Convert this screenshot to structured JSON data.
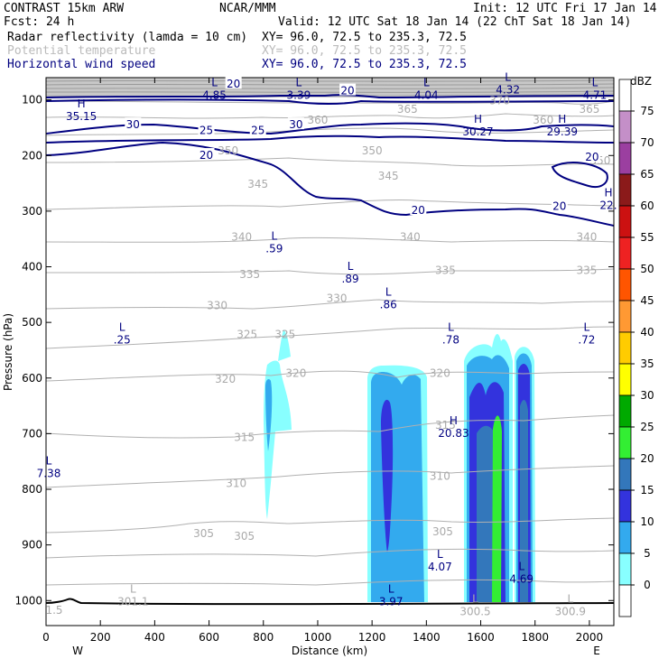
{
  "header": {
    "line1_left": "CONTRAST 15km ARW",
    "line1_mid": "NCAR/MMM",
    "line1_right": "Init: 12 UTC Fri 17 Jan 14",
    "line2_left": "Fcst:    24 h",
    "line2_right": "Valid: 12 UTC Sat 18 Jan 14 (22 ChT Sat 18 Jan 14)"
  },
  "fields": [
    {
      "name": "Radar reflectivity (lamda = 10 cm)",
      "xy": "XY=  96.0, 72.5 to 235.3, 72.5",
      "color": "#000000"
    },
    {
      "name": "Potential temperature",
      "xy": "XY=  96.0, 72.5 to 235.3, 72.5",
      "color": "#bbbbbb"
    },
    {
      "name": "Horizontal wind speed",
      "xy": "XY=  96.0, 72.5 to 235.3, 72.5",
      "color": "#000080"
    }
  ],
  "chart_data": {
    "type": "cross-section",
    "xlabel": "Distance (km)",
    "ylabel": "Pressure (hPa)",
    "xlim": [
      0,
      2090
    ],
    "ylim": [
      1045,
      60
    ],
    "x_ticks": [
      0,
      200,
      400,
      600,
      800,
      1000,
      1200,
      1400,
      1600,
      1800,
      2000
    ],
    "y_ticks": [
      100,
      200,
      300,
      400,
      500,
      600,
      700,
      800,
      900,
      1000
    ],
    "x_end_labels": {
      "left": "W",
      "right": "E"
    },
    "colorbar": {
      "unit": "dBZ",
      "levels": [
        75,
        70,
        65,
        60,
        55,
        50,
        45,
        40,
        35,
        30,
        25,
        20,
        15,
        10,
        5,
        0
      ],
      "colors": [
        "#ffffff",
        "#c48fc8",
        "#9b3fa0",
        "#8b1a1a",
        "#cc1111",
        "#ee2222",
        "#ff5500",
        "#ff9933",
        "#ffcc00",
        "#ffff00",
        "#00aa00",
        "#33ee33",
        "#3377bb",
        "#3333dd",
        "#33aaee",
        "#88ffff"
      ]
    },
    "theta_labels": [
      {
        "text": "360",
        "x": 1000,
        "p": 135
      },
      {
        "text": "360",
        "x": 1830,
        "p": 135
      },
      {
        "text": "365",
        "x": 1330,
        "p": 115
      },
      {
        "text": "365",
        "x": 2000,
        "p": 115
      },
      {
        "text": "370",
        "x": 1670,
        "p": 100
      },
      {
        "text": "350",
        "x": 670,
        "p": 190
      },
      {
        "text": "350",
        "x": 1200,
        "p": 190
      },
      {
        "text": "350",
        "x": 2040,
        "p": 208
      },
      {
        "text": "345",
        "x": 780,
        "p": 250
      },
      {
        "text": "345",
        "x": 1260,
        "p": 235
      },
      {
        "text": "340",
        "x": 720,
        "p": 345
      },
      {
        "text": "340",
        "x": 1340,
        "p": 345
      },
      {
        "text": "340",
        "x": 1990,
        "p": 345
      },
      {
        "text": "335",
        "x": 750,
        "p": 412
      },
      {
        "text": "335",
        "x": 1470,
        "p": 405
      },
      {
        "text": "335",
        "x": 1990,
        "p": 405
      },
      {
        "text": "330",
        "x": 630,
        "p": 468
      },
      {
        "text": "330",
        "x": 1070,
        "p": 455
      },
      {
        "text": "325",
        "x": 740,
        "p": 520
      },
      {
        "text": "325",
        "x": 880,
        "p": 520
      },
      {
        "text": "320",
        "x": 660,
        "p": 600
      },
      {
        "text": "320",
        "x": 920,
        "p": 590
      },
      {
        "text": "320",
        "x": 1450,
        "p": 590
      },
      {
        "text": "315",
        "x": 730,
        "p": 705
      },
      {
        "text": "315",
        "x": 1470,
        "p": 683
      },
      {
        "text": "310",
        "x": 700,
        "p": 788
      },
      {
        "text": "310",
        "x": 1450,
        "p": 775
      },
      {
        "text": "305",
        "x": 580,
        "p": 878
      },
      {
        "text": "305",
        "x": 730,
        "p": 883
      },
      {
        "text": "305",
        "x": 1460,
        "p": 875
      }
    ],
    "wind_labels": [
      {
        "text": "30",
        "x": 320,
        "p": 143
      },
      {
        "text": "30",
        "x": 920,
        "p": 143
      },
      {
        "text": "25",
        "x": 590,
        "p": 153
      },
      {
        "text": "25",
        "x": 780,
        "p": 153
      },
      {
        "text": "20",
        "x": 690,
        "p": 70
      },
      {
        "text": "20",
        "x": 1110,
        "p": 82
      },
      {
        "text": "20",
        "x": 590,
        "p": 198
      },
      {
        "text": "20",
        "x": 1370,
        "p": 297
      },
      {
        "text": "20",
        "x": 1890,
        "p": 290
      },
      {
        "text": "20",
        "x": 2010,
        "p": 201
      }
    ],
    "extrema": [
      {
        "type": "L",
        "value": "4.85",
        "x": 620,
        "p": 82,
        "color": "#000080"
      },
      {
        "type": "L",
        "value": "3.39",
        "x": 930,
        "p": 82,
        "color": "#000080"
      },
      {
        "type": "L",
        "value": "4.04",
        "x": 1400,
        "p": 82,
        "color": "#000080"
      },
      {
        "type": "L",
        "value": "4.32",
        "x": 1700,
        "p": 72,
        "color": "#000080"
      },
      {
        "type": "L",
        "value": "4.71",
        "x": 2020,
        "p": 82,
        "color": "#000080"
      },
      {
        "type": "H",
        "value": "35.15",
        "x": 130,
        "p": 120,
        "color": "#000080"
      },
      {
        "type": "H",
        "value": "30.27",
        "x": 1590,
        "p": 148,
        "color": "#000080"
      },
      {
        "type": "H",
        "value": "29.39",
        "x": 1900,
        "p": 148,
        "color": "#000080"
      },
      {
        "type": "H",
        "value": "22.",
        "x": 2070,
        "p": 280,
        "color": "#000080"
      },
      {
        "type": "L",
        "value": ".59",
        "x": 840,
        "p": 358,
        "color": "#000080"
      },
      {
        "type": "L",
        "value": ".89",
        "x": 1120,
        "p": 412,
        "color": "#000080"
      },
      {
        "type": "L",
        "value": ".86",
        "x": 1260,
        "p": 458,
        "color": "#000080"
      },
      {
        "type": "L",
        "value": ".25",
        "x": 280,
        "p": 522,
        "color": "#000080"
      },
      {
        "type": "L",
        "value": ".78",
        "x": 1490,
        "p": 522,
        "color": "#000080"
      },
      {
        "type": "L",
        "value": ".72",
        "x": 1990,
        "p": 522,
        "color": "#000080"
      },
      {
        "type": "H",
        "value": "20.83",
        "x": 1500,
        "p": 690,
        "color": "#000080"
      },
      {
        "type": "L",
        "value": "7.38",
        "x": 10,
        "p": 762,
        "color": "#000080"
      },
      {
        "type": "L",
        "value": "4.07",
        "x": 1450,
        "p": 930,
        "color": "#000080"
      },
      {
        "type": "L",
        "value": "3.97",
        "x": 1270,
        "p": 992,
        "color": "#000080"
      },
      {
        "type": "L",
        "value": "4.69",
        "x": 1750,
        "p": 952,
        "color": "#000080"
      },
      {
        "type": "L",
        "value": "301.1",
        "x": 320,
        "p": 992,
        "color": "#aaaaaa"
      },
      {
        "type": "L",
        "value": "300.5",
        "x": 1580,
        "p": 1010,
        "color": "#aaaaaa"
      },
      {
        "type": "L",
        "value": "300.9",
        "x": 1930,
        "p": 1010,
        "color": "#aaaaaa"
      },
      {
        "type": "",
        "value": "1.5",
        "x": 30,
        "p": 1008,
        "color": "#aaaaaa"
      }
    ]
  }
}
